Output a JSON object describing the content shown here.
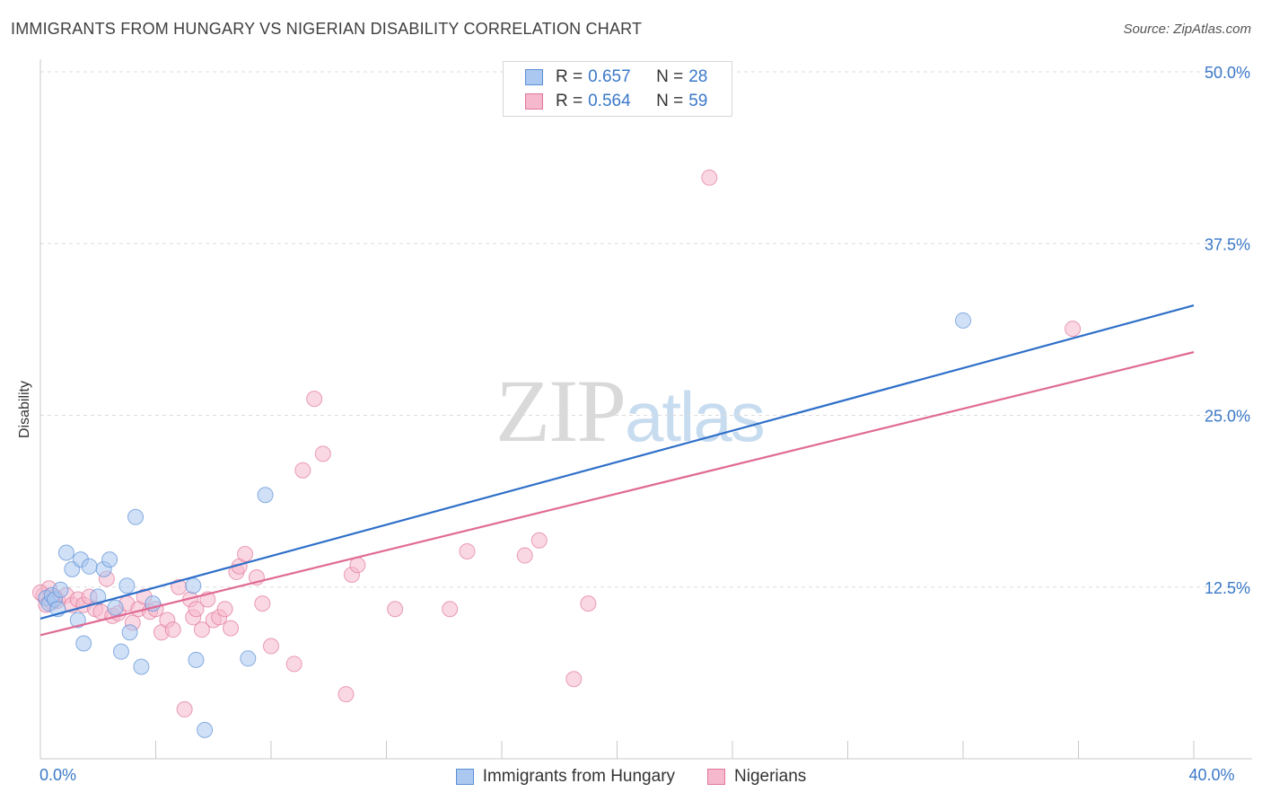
{
  "header": {
    "title": "IMMIGRANTS FROM HUNGARY VS NIGERIAN DISABILITY CORRELATION CHART",
    "source": "Source: ZipAtlas.com"
  },
  "watermark": {
    "part1": "ZIP",
    "part2": "atlas"
  },
  "legend_top": {
    "rows": [
      {
        "r_label": "R =",
        "r_value": "0.657",
        "n_label": "N =",
        "n_value": "28"
      },
      {
        "r_label": "R =",
        "r_value": "0.564",
        "n_label": "N =",
        "n_value": "59"
      }
    ]
  },
  "legend_bottom": {
    "items": [
      "Immigrants from Hungary",
      "Nigerians"
    ]
  },
  "colors": {
    "blue_fill": "#aac8f0",
    "blue_stroke": "#5b8fd6",
    "blue_line": "#2e6fc9",
    "pink_fill": "#f6b8cc",
    "pink_stroke": "#e07799",
    "pink_line": "#e06a95",
    "tick_text": "#3a78c8",
    "grid": "#dcdcdc"
  },
  "chart_data": {
    "type": "scatter",
    "title": "IMMIGRANTS FROM HUNGARY VS NIGERIAN DISABILITY CORRELATION CHART",
    "xlabel": "",
    "ylabel": "Disability",
    "xlim": [
      0,
      40
    ],
    "ylim": [
      0,
      50
    ],
    "x_tick_labels": [
      {
        "value": 0,
        "label": "0.0%"
      },
      {
        "value": 40,
        "label": "40.0%"
      }
    ],
    "y_tick_labels": [
      {
        "value": 12.5,
        "label": "12.5%"
      },
      {
        "value": 25,
        "label": "25.0%"
      },
      {
        "value": 37.5,
        "label": "37.5%"
      },
      {
        "value": 50,
        "label": "50.0%"
      }
    ],
    "x_minor_ticks": [
      0,
      4,
      8,
      12,
      16,
      20,
      24,
      28,
      32,
      36,
      40
    ],
    "grid": true,
    "series": [
      {
        "name": "Immigrants from Hungary",
        "color": "blue",
        "R": 0.657,
        "N": 28,
        "trendline": {
          "x0": 0,
          "y0": 10.2,
          "x1": 40,
          "y1": 33.0
        },
        "points": [
          [
            0.2,
            11.7
          ],
          [
            0.3,
            11.3
          ],
          [
            0.4,
            11.9
          ],
          [
            0.5,
            11.6
          ],
          [
            0.6,
            10.9
          ],
          [
            0.7,
            12.3
          ],
          [
            0.9,
            15.0
          ],
          [
            1.1,
            13.8
          ],
          [
            1.3,
            10.1
          ],
          [
            1.4,
            14.5
          ],
          [
            1.5,
            8.4
          ],
          [
            1.7,
            14.0
          ],
          [
            2.0,
            11.8
          ],
          [
            2.2,
            13.8
          ],
          [
            2.4,
            14.5
          ],
          [
            2.6,
            11.0
          ],
          [
            2.8,
            7.8
          ],
          [
            3.0,
            12.6
          ],
          [
            3.1,
            9.2
          ],
          [
            3.3,
            17.6
          ],
          [
            3.5,
            6.7
          ],
          [
            3.9,
            11.3
          ],
          [
            5.3,
            12.6
          ],
          [
            5.4,
            7.2
          ],
          [
            5.7,
            2.1
          ],
          [
            7.2,
            7.3
          ],
          [
            7.8,
            19.2
          ],
          [
            32.0,
            31.9
          ]
        ]
      },
      {
        "name": "Nigerians",
        "color": "pink",
        "R": 0.564,
        "N": 59,
        "trendline": {
          "x0": 0,
          "y0": 9.0,
          "x1": 40,
          "y1": 29.6
        },
        "points": [
          [
            0.1,
            11.9
          ],
          [
            0.2,
            11.2
          ],
          [
            0.3,
            12.4
          ],
          [
            0.5,
            11.8
          ],
          [
            0.6,
            11.5
          ],
          [
            0.9,
            11.9
          ],
          [
            1.1,
            11.2
          ],
          [
            1.3,
            11.6
          ],
          [
            1.5,
            11.2
          ],
          [
            1.7,
            11.8
          ],
          [
            1.9,
            10.9
          ],
          [
            2.1,
            10.7
          ],
          [
            2.3,
            13.1
          ],
          [
            2.5,
            10.4
          ],
          [
            2.7,
            10.6
          ],
          [
            3.0,
            11.3
          ],
          [
            3.2,
            9.9
          ],
          [
            3.4,
            10.9
          ],
          [
            3.6,
            11.8
          ],
          [
            3.8,
            10.7
          ],
          [
            4.0,
            10.9
          ],
          [
            4.2,
            9.2
          ],
          [
            4.4,
            10.1
          ],
          [
            4.6,
            9.4
          ],
          [
            4.8,
            12.5
          ],
          [
            5.0,
            3.6
          ],
          [
            5.2,
            11.6
          ],
          [
            5.3,
            10.3
          ],
          [
            5.4,
            10.9
          ],
          [
            5.6,
            9.4
          ],
          [
            5.8,
            11.6
          ],
          [
            6.0,
            10.1
          ],
          [
            6.2,
            10.3
          ],
          [
            6.4,
            10.9
          ],
          [
            6.6,
            9.5
          ],
          [
            6.8,
            13.6
          ],
          [
            6.9,
            14.0
          ],
          [
            7.1,
            14.9
          ],
          [
            7.5,
            13.2
          ],
          [
            7.7,
            11.3
          ],
          [
            8.0,
            8.2
          ],
          [
            8.8,
            6.9
          ],
          [
            9.1,
            21.0
          ],
          [
            9.5,
            26.2
          ],
          [
            9.8,
            22.2
          ],
          [
            10.6,
            4.7
          ],
          [
            10.8,
            13.4
          ],
          [
            11.0,
            14.1
          ],
          [
            12.3,
            10.9
          ],
          [
            14.2,
            10.9
          ],
          [
            14.8,
            15.1
          ],
          [
            16.8,
            14.8
          ],
          [
            17.3,
            15.9
          ],
          [
            18.5,
            5.8
          ],
          [
            19.0,
            11.3
          ],
          [
            23.2,
            42.3
          ],
          [
            35.8,
            31.3
          ],
          [
            0.0,
            12.1
          ],
          [
            0.4,
            11.4
          ]
        ]
      }
    ]
  }
}
